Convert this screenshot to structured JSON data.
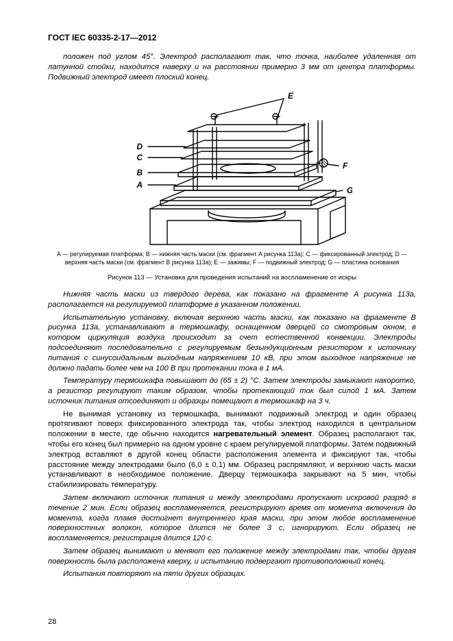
{
  "docId": "ГОСТ IEC 60335-2-17—2012",
  "pageNumber": "28",
  "intro": "положен под углом 45°. Электрод располагают так, что точка, наиболее удаленная от латунной стойки, находится наверху и на расстоянии примерно 3 мм от центра платформы. Подвижный электрод имеет плоский конец.",
  "figure": {
    "labels": {
      "A": "A",
      "B": "B",
      "C": "C",
      "D": "D",
      "E": "E",
      "F": "F",
      "G": "G"
    },
    "legend": "A — регулируемая платформа; B — нижняя часть маски (см. фрагмент A рисунка 113a); C — фиксированный электрод; D — верхняя часть маски (см. фрагмент B рисунка 113a); E — зажимы; F — подвижный электрод; G — пластина основания",
    "caption": "Рисунок  113  —  Установка для проведения испытаний на воспламенение от искры",
    "stroke": "#000000",
    "fill": "#ffffff"
  },
  "paragraphs": [
    {
      "italic": true,
      "text": "Нижняя часть маски из твердого дерева, как показано на фрагменте A рисунка 113a, располагается на регулируемой платформе в указанном положении."
    },
    {
      "italic": true,
      "text": "Испытательную установку, включая верхнюю часть маски, как показано на фрагменте B рисунка 113a, устанавливают в термошкафу, оснащенном дверцей со смотровым окном, в котором циркуляция воздуха происходит за счет естественной конвекции. Электроды подсоединяют последовательно с регулируемым безындукционным резистором к источнику питания с синусоидальным выходным напряжением 10 кВ, при этом выходное напряжение не должно падать более чем на 100 В при протекании тока в 1 мА."
    },
    {
      "italic": true,
      "text": "Температуру термошкафа повышают до (65 ± 2) °С. Затем электроды замыкают накоротко, а резистор регулируют таким образом, чтобы протекающий ток был силой 1 мА. Затем источник питания отсоединяют и образцы помещают в термошкаф на 3 ч."
    },
    {
      "italic": false,
      "html": true,
      "text": "Не вынимая установку из термошкафа, вынимают подвижный электрод и один образец протягивают поверх фиксированного электрода так, чтобы электрод находился в центральном положении в месте, где обычно находится <b>нагревательный элемент</b>. Образец располагают так, чтобы его конец был примерно на одном уровне с краем регулируемой платформы. Затем подвижный электрод вставляют в другой конец области расположения элемента и фиксируют так, чтобы расстояние между электродами было (6,0 ± 0,1) мм. Образец распрямляют, и верхнюю часть маски устанавливают в необходимое положение. Дверцу термошкафа закрывают на 5 мин, чтобы стабилизировать температуру."
    },
    {
      "italic": true,
      "text": "Затем включают источник питания и между электродами пропускают искровой разряд в течение 2 мин. Если образец воспламеняется, регистрируют время от момента включения до момента, когда пламя достигнет внутреннего края маски, при этом любое воспламенение поверхностных волокон, которое длится не более 3 с, игнорируют. Если образец не воспламеняется, регистрация длится 120 с."
    },
    {
      "italic": true,
      "text": "Затем образец вынимают и меняют его положение между электродами так, чтобы другая поверхность была расположена кверху, и испытанию подвергают противоположный конец."
    },
    {
      "italic": true,
      "text": "Испытания повторяют на пяти других образцах."
    }
  ]
}
